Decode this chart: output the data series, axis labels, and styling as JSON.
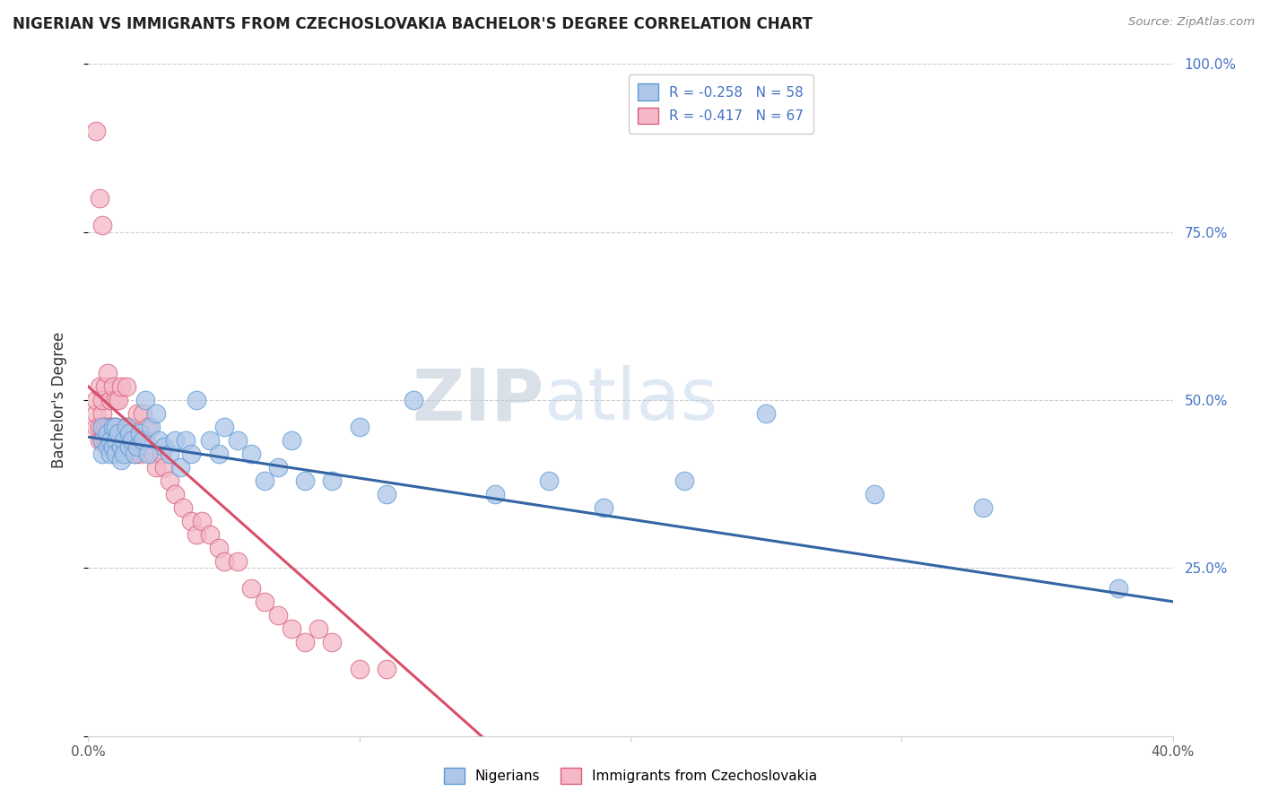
{
  "title": "NIGERIAN VS IMMIGRANTS FROM CZECHOSLOVAKIA BACHELOR'S DEGREE CORRELATION CHART",
  "source": "Source: ZipAtlas.com",
  "ylabel": "Bachelor's Degree",
  "watermark_zip": "ZIP",
  "watermark_atlas": "atlas",
  "xlim": [
    0.0,
    0.4
  ],
  "ylim": [
    0.0,
    1.0
  ],
  "nigerian_color": "#aec6e8",
  "nigerian_edge": "#5b9bd5",
  "czech_color": "#f4b8c8",
  "czech_edge": "#d9607a",
  "nigerian_R": -0.258,
  "nigerian_N": 58,
  "czech_R": -0.417,
  "czech_N": 67,
  "nigerian_line_color": "#3465a4",
  "czech_line_color": "#d94f6a",
  "legend_label_nigerian": "Nigerians",
  "legend_label_czech": "Immigrants from Czechoslovakia",
  "tick_color": "#4472C4",
  "grid_color": "#cccccc",
  "nigerian_x": [
    0.005,
    0.005,
    0.005,
    0.007,
    0.007,
    0.008,
    0.008,
    0.009,
    0.009,
    0.01,
    0.01,
    0.01,
    0.011,
    0.012,
    0.012,
    0.013,
    0.013,
    0.014,
    0.015,
    0.015,
    0.016,
    0.017,
    0.018,
    0.019,
    0.02,
    0.021,
    0.022,
    0.023,
    0.025,
    0.026,
    0.028,
    0.03,
    0.032,
    0.034,
    0.036,
    0.038,
    0.04,
    0.045,
    0.048,
    0.05,
    0.055,
    0.06,
    0.065,
    0.07,
    0.075,
    0.08,
    0.09,
    0.1,
    0.11,
    0.12,
    0.15,
    0.17,
    0.19,
    0.22,
    0.25,
    0.29,
    0.33,
    0.38
  ],
  "nigerian_y": [
    0.44,
    0.46,
    0.42,
    0.43,
    0.45,
    0.44,
    0.42,
    0.46,
    0.43,
    0.44,
    0.46,
    0.42,
    0.45,
    0.43,
    0.41,
    0.44,
    0.42,
    0.46,
    0.43,
    0.45,
    0.44,
    0.42,
    0.43,
    0.45,
    0.44,
    0.5,
    0.42,
    0.46,
    0.48,
    0.44,
    0.43,
    0.42,
    0.44,
    0.4,
    0.44,
    0.42,
    0.5,
    0.44,
    0.42,
    0.46,
    0.44,
    0.42,
    0.38,
    0.4,
    0.44,
    0.38,
    0.38,
    0.46,
    0.36,
    0.5,
    0.36,
    0.38,
    0.34,
    0.38,
    0.48,
    0.36,
    0.34,
    0.22
  ],
  "czech_x": [
    0.003,
    0.003,
    0.003,
    0.004,
    0.004,
    0.004,
    0.005,
    0.005,
    0.005,
    0.005,
    0.006,
    0.006,
    0.006,
    0.007,
    0.007,
    0.007,
    0.008,
    0.008,
    0.008,
    0.009,
    0.009,
    0.009,
    0.01,
    0.01,
    0.01,
    0.011,
    0.011,
    0.012,
    0.012,
    0.013,
    0.014,
    0.014,
    0.015,
    0.015,
    0.016,
    0.017,
    0.018,
    0.019,
    0.02,
    0.021,
    0.022,
    0.024,
    0.025,
    0.027,
    0.028,
    0.03,
    0.032,
    0.035,
    0.038,
    0.04,
    0.042,
    0.045,
    0.048,
    0.05,
    0.055,
    0.06,
    0.065,
    0.07,
    0.075,
    0.08,
    0.085,
    0.09,
    0.1,
    0.11,
    0.003,
    0.004,
    0.005
  ],
  "czech_y": [
    0.46,
    0.48,
    0.5,
    0.44,
    0.46,
    0.52,
    0.44,
    0.46,
    0.48,
    0.5,
    0.44,
    0.46,
    0.52,
    0.44,
    0.46,
    0.54,
    0.44,
    0.46,
    0.5,
    0.44,
    0.46,
    0.52,
    0.44,
    0.46,
    0.5,
    0.44,
    0.5,
    0.44,
    0.52,
    0.44,
    0.46,
    0.52,
    0.44,
    0.46,
    0.44,
    0.42,
    0.48,
    0.42,
    0.48,
    0.44,
    0.46,
    0.42,
    0.4,
    0.42,
    0.4,
    0.38,
    0.36,
    0.34,
    0.32,
    0.3,
    0.32,
    0.3,
    0.28,
    0.26,
    0.26,
    0.22,
    0.2,
    0.18,
    0.16,
    0.14,
    0.16,
    0.14,
    0.1,
    0.1,
    0.9,
    0.8,
    0.76
  ]
}
